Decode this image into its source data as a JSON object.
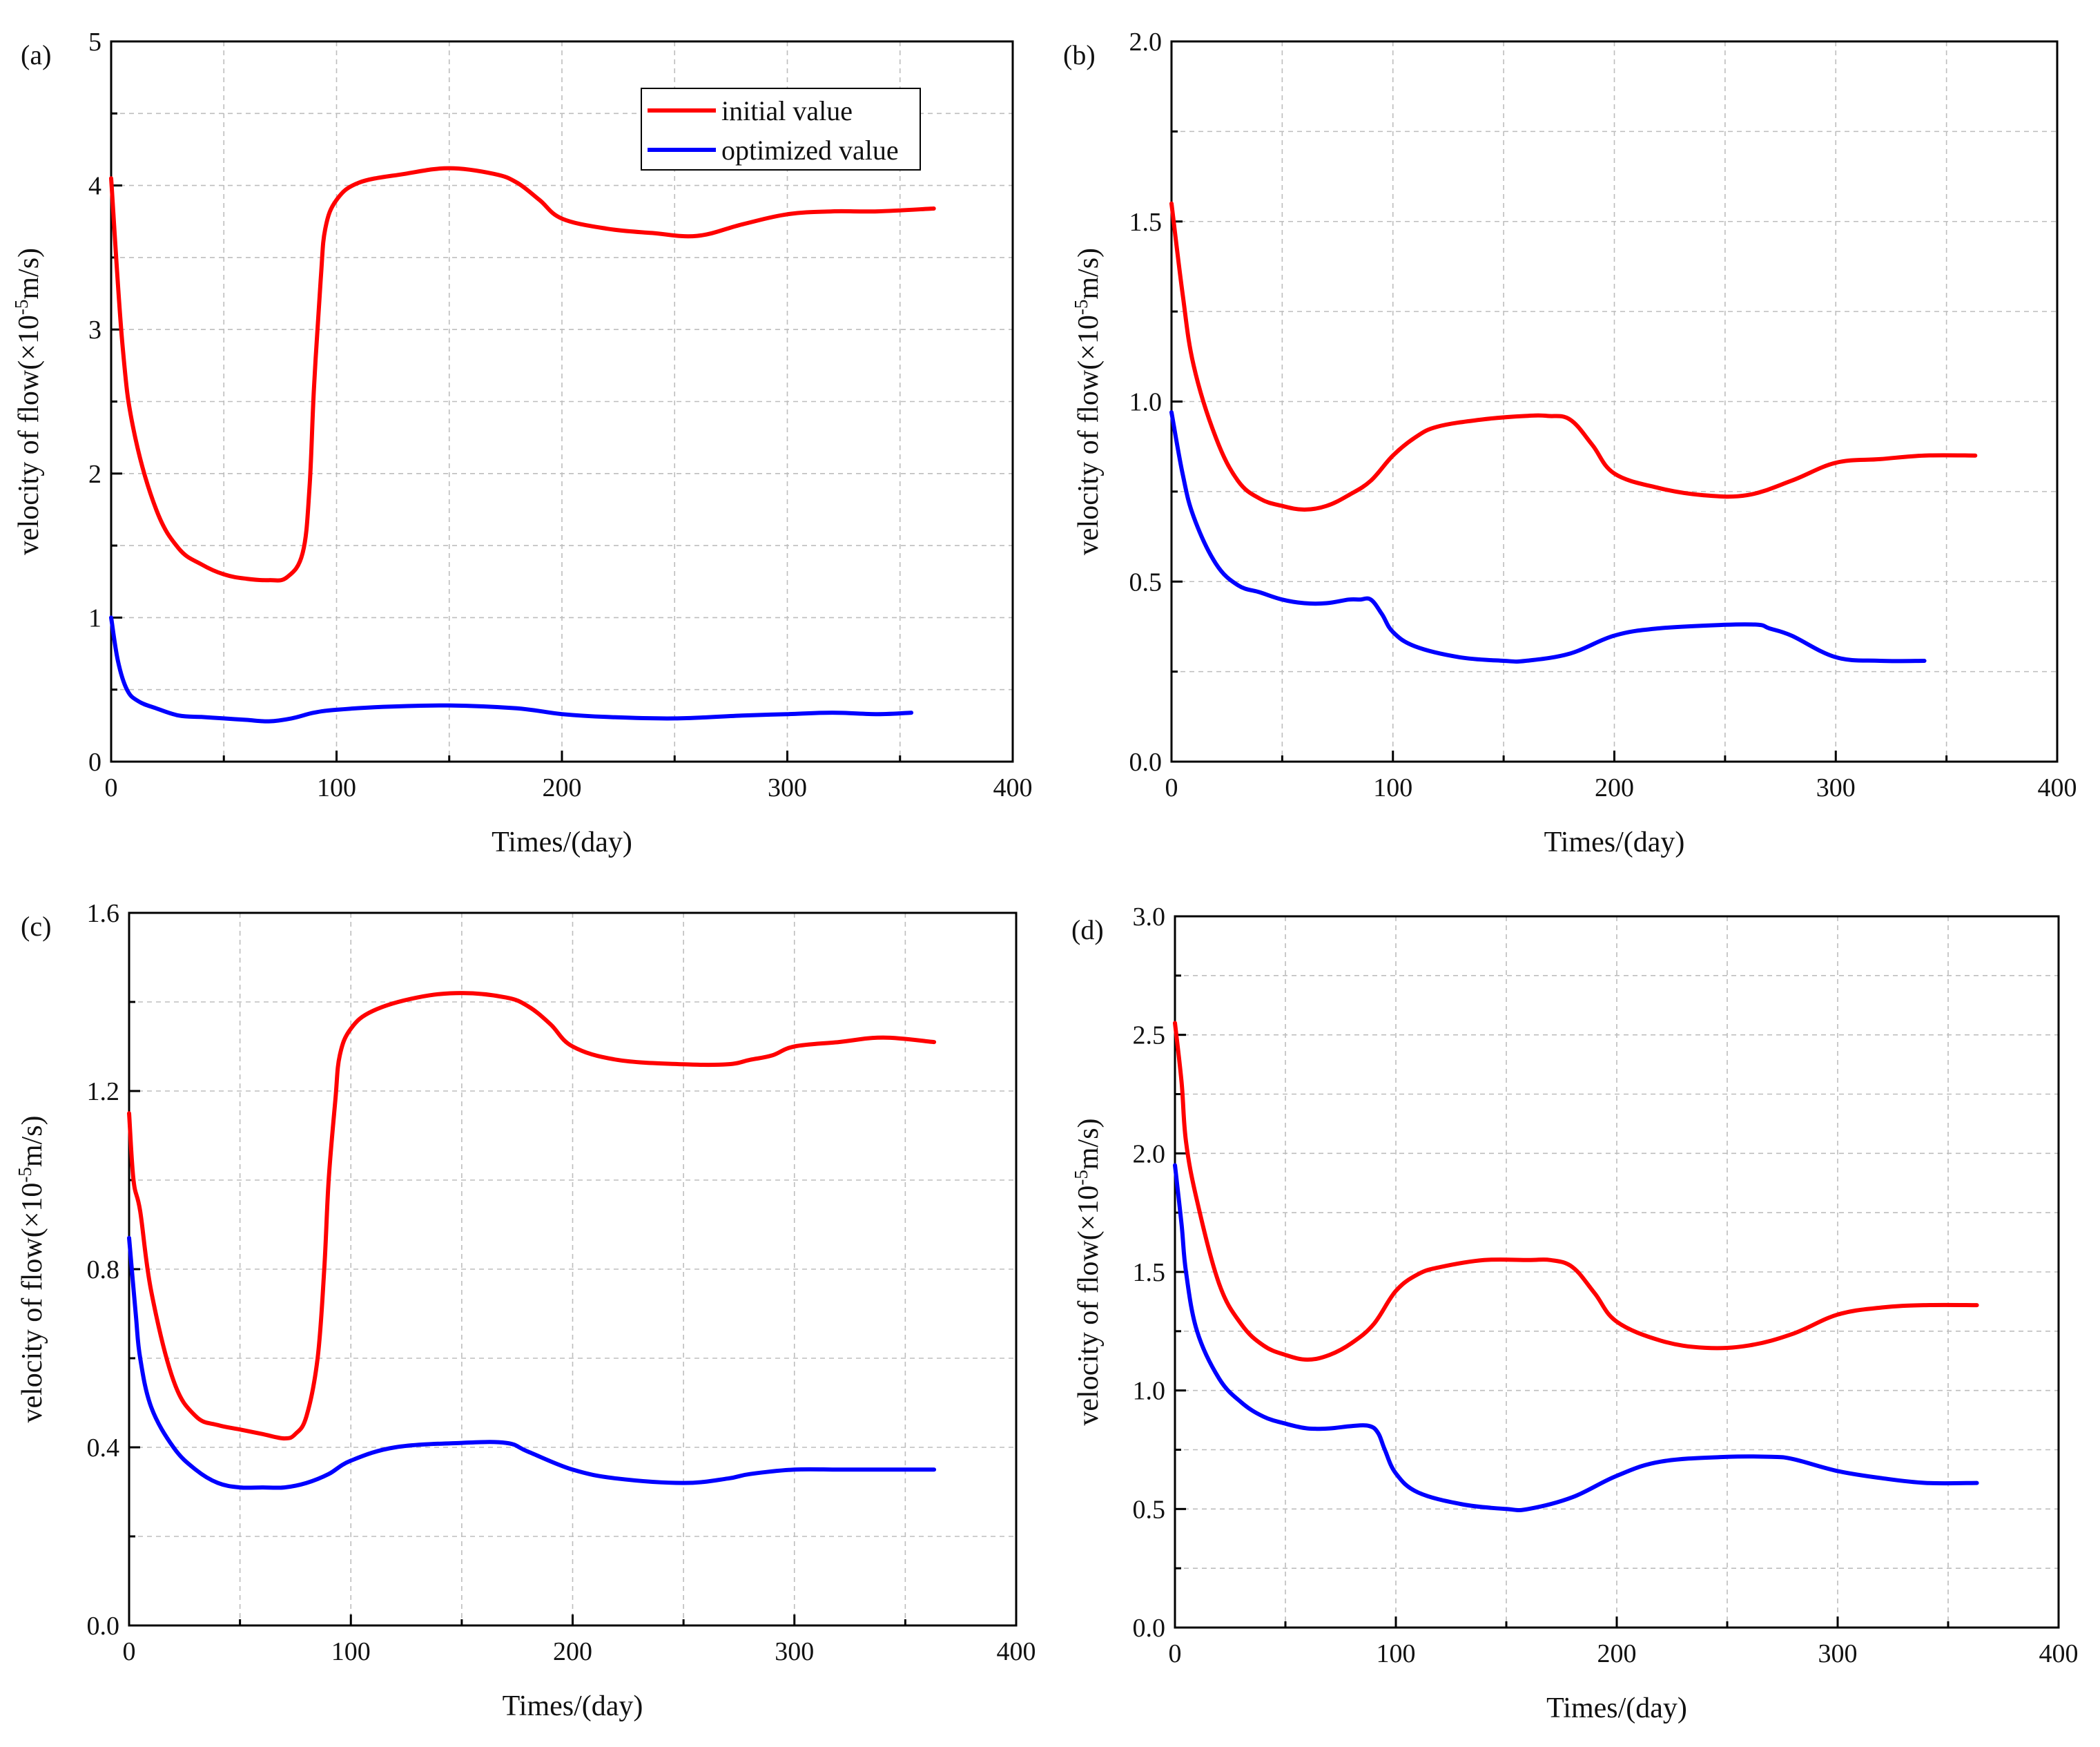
{
  "figure": {
    "legend": {
      "entries": [
        "initial value",
        "optimized value"
      ]
    },
    "series_colors": {
      "initial value": "#ff0000",
      "optimized value": "#0000ff"
    }
  },
  "chart_data": [
    {
      "panel": "(a)",
      "type": "line",
      "xlabel": "Times/(day)",
      "ylabel_prefix": "velocity of flow(×10",
      "ylabel_exponent": "-5",
      "ylabel_suffix": "m/s)",
      "xlim": [
        0,
        400
      ],
      "ylim": [
        0,
        5
      ],
      "xticks": [
        0,
        100,
        200,
        300,
        400
      ],
      "xtick_labels": [
        "0",
        "100",
        "200",
        "300",
        "400"
      ],
      "yticks": [
        0,
        1,
        2,
        3,
        4,
        5
      ],
      "ytick_labels": [
        "0",
        "1",
        "2",
        "3",
        "4",
        "5"
      ],
      "legend": "top-right",
      "series": [
        {
          "name": "initial value",
          "color": "#ff0000",
          "x": [
            0,
            5,
            10,
            20,
            30,
            40,
            50,
            60,
            70,
            78,
            85,
            88,
            90,
            93,
            95,
            100,
            110,
            130,
            150,
            170,
            180,
            190,
            200,
            220,
            240,
            260,
            280,
            300,
            320,
            340,
            365
          ],
          "y": [
            4.05,
            2.9,
            2.3,
            1.75,
            1.48,
            1.37,
            1.3,
            1.27,
            1.26,
            1.28,
            1.45,
            1.9,
            2.6,
            3.35,
            3.7,
            3.9,
            4.02,
            4.08,
            4.12,
            4.08,
            4.02,
            3.9,
            3.77,
            3.7,
            3.67,
            3.65,
            3.73,
            3.8,
            3.82,
            3.82,
            3.84
          ]
        },
        {
          "name": "optimized value",
          "color": "#0000ff",
          "x": [
            0,
            3,
            7,
            12,
            20,
            30,
            40,
            50,
            60,
            70,
            80,
            90,
            100,
            120,
            150,
            180,
            200,
            220,
            250,
            280,
            300,
            320,
            340,
            355
          ],
          "y": [
            1.0,
            0.7,
            0.5,
            0.42,
            0.37,
            0.32,
            0.31,
            0.3,
            0.29,
            0.28,
            0.3,
            0.34,
            0.36,
            0.38,
            0.39,
            0.37,
            0.33,
            0.31,
            0.3,
            0.32,
            0.33,
            0.34,
            0.33,
            0.34
          ]
        }
      ]
    },
    {
      "panel": "(b)",
      "type": "line",
      "xlabel": "Times/(day)",
      "ylabel_prefix": "velocity of flow(×10",
      "ylabel_exponent": "-5",
      "ylabel_suffix": "m/s)",
      "xlim": [
        0,
        400
      ],
      "ylim": [
        0,
        2
      ],
      "xticks": [
        0,
        100,
        200,
        300,
        400
      ],
      "xtick_labels": [
        "0",
        "100",
        "200",
        "300",
        "400"
      ],
      "yticks": [
        0,
        0.5,
        1,
        1.5,
        2
      ],
      "ytick_labels": [
        "0.0",
        "0.5",
        "1.0",
        "1.5",
        "2.0"
      ],
      "series": [
        {
          "name": "initial value",
          "color": "#ff0000",
          "x": [
            0,
            5,
            10,
            20,
            30,
            40,
            50,
            60,
            70,
            80,
            90,
            100,
            110,
            120,
            140,
            160,
            170,
            180,
            190,
            200,
            220,
            240,
            260,
            280,
            300,
            320,
            340,
            363
          ],
          "y": [
            1.55,
            1.3,
            1.1,
            0.9,
            0.78,
            0.73,
            0.71,
            0.7,
            0.71,
            0.74,
            0.78,
            0.85,
            0.9,
            0.93,
            0.95,
            0.96,
            0.96,
            0.95,
            0.88,
            0.8,
            0.76,
            0.74,
            0.74,
            0.78,
            0.83,
            0.84,
            0.85,
            0.85
          ]
        },
        {
          "name": "optimized value",
          "color": "#0000ff",
          "x": [
            0,
            5,
            10,
            20,
            30,
            40,
            50,
            60,
            70,
            80,
            85,
            90,
            95,
            100,
            110,
            130,
            150,
            160,
            180,
            200,
            220,
            250,
            265,
            270,
            280,
            300,
            320,
            340
          ],
          "y": [
            0.97,
            0.8,
            0.68,
            0.55,
            0.49,
            0.47,
            0.45,
            0.44,
            0.44,
            0.45,
            0.45,
            0.45,
            0.41,
            0.36,
            0.32,
            0.29,
            0.28,
            0.28,
            0.3,
            0.35,
            0.37,
            0.38,
            0.38,
            0.37,
            0.35,
            0.29,
            0.28,
            0.28
          ]
        }
      ]
    },
    {
      "panel": "(c)",
      "type": "line",
      "xlabel": "Times/(day)",
      "ylabel_prefix": "velocity of flow(×10",
      "ylabel_exponent": "-5",
      "ylabel_suffix": "m/s)",
      "xlim": [
        0,
        400
      ],
      "ylim": [
        0,
        1.6
      ],
      "xticks": [
        0,
        100,
        200,
        300,
        400
      ],
      "xtick_labels": [
        "0",
        "100",
        "200",
        "300",
        "400"
      ],
      "yticks": [
        0,
        0.4,
        0.8,
        1.2,
        1.6
      ],
      "ytick_labels": [
        "0.0",
        "0.4",
        "0.8",
        "1.2",
        "1.6"
      ],
      "series": [
        {
          "name": "initial value",
          "color": "#ff0000",
          "x": [
            0,
            2,
            5,
            10,
            20,
            30,
            40,
            50,
            60,
            70,
            75,
            80,
            85,
            88,
            90,
            93,
            95,
            100,
            110,
            130,
            150,
            170,
            180,
            190,
            200,
            220,
            250,
            270,
            280,
            290,
            300,
            320,
            340,
            363
          ],
          "y": [
            1.15,
            1.0,
            0.93,
            0.75,
            0.55,
            0.47,
            0.45,
            0.44,
            0.43,
            0.42,
            0.43,
            0.47,
            0.6,
            0.8,
            1.0,
            1.18,
            1.28,
            1.34,
            1.38,
            1.41,
            1.42,
            1.41,
            1.39,
            1.35,
            1.3,
            1.27,
            1.26,
            1.26,
            1.27,
            1.28,
            1.3,
            1.31,
            1.32,
            1.31
          ]
        },
        {
          "name": "optimized value",
          "color": "#0000ff",
          "x": [
            0,
            3,
            5,
            10,
            20,
            30,
            40,
            50,
            60,
            70,
            80,
            90,
            100,
            120,
            150,
            170,
            180,
            200,
            220,
            250,
            270,
            280,
            300,
            320,
            340,
            363
          ],
          "y": [
            0.87,
            0.7,
            0.6,
            0.49,
            0.4,
            0.35,
            0.32,
            0.31,
            0.31,
            0.31,
            0.32,
            0.34,
            0.37,
            0.4,
            0.41,
            0.41,
            0.39,
            0.35,
            0.33,
            0.32,
            0.33,
            0.34,
            0.35,
            0.35,
            0.35,
            0.35
          ]
        }
      ]
    },
    {
      "panel": "(d)",
      "type": "line",
      "xlabel": "Times/(day)",
      "ylabel_prefix": "velocity of flow(×10",
      "ylabel_exponent": "-5",
      "ylabel_suffix": "m/s)",
      "xlim": [
        0,
        400
      ],
      "ylim": [
        0,
        3
      ],
      "xticks": [
        0,
        100,
        200,
        300,
        400
      ],
      "xtick_labels": [
        "0",
        "100",
        "200",
        "300",
        "400"
      ],
      "yticks": [
        0,
        0.5,
        1,
        1.5,
        2,
        2.5,
        3
      ],
      "ytick_labels": [
        "0.0",
        "0.5",
        "1.0",
        "1.5",
        "2.0",
        "2.5",
        "3.0"
      ],
      "series": [
        {
          "name": "initial value",
          "color": "#ff0000",
          "x": [
            0,
            3,
            5,
            10,
            20,
            30,
            40,
            50,
            60,
            70,
            80,
            90,
            100,
            110,
            120,
            140,
            160,
            170,
            180,
            190,
            200,
            220,
            240,
            260,
            280,
            300,
            320,
            340,
            363
          ],
          "y": [
            2.55,
            2.3,
            2.05,
            1.8,
            1.45,
            1.28,
            1.19,
            1.15,
            1.13,
            1.15,
            1.2,
            1.28,
            1.42,
            1.49,
            1.52,
            1.55,
            1.55,
            1.55,
            1.52,
            1.41,
            1.29,
            1.21,
            1.18,
            1.19,
            1.24,
            1.32,
            1.35,
            1.36,
            1.36
          ]
        },
        {
          "name": "optimized value",
          "color": "#0000ff",
          "x": [
            0,
            3,
            5,
            10,
            20,
            30,
            40,
            50,
            60,
            70,
            80,
            88,
            92,
            95,
            100,
            110,
            130,
            150,
            160,
            180,
            200,
            220,
            250,
            270,
            280,
            300,
            320,
            340,
            363
          ],
          "y": [
            1.95,
            1.7,
            1.5,
            1.25,
            1.05,
            0.95,
            0.89,
            0.86,
            0.84,
            0.84,
            0.85,
            0.85,
            0.82,
            0.75,
            0.65,
            0.57,
            0.52,
            0.5,
            0.5,
            0.55,
            0.64,
            0.7,
            0.72,
            0.72,
            0.71,
            0.66,
            0.63,
            0.61,
            0.61
          ]
        }
      ]
    }
  ]
}
